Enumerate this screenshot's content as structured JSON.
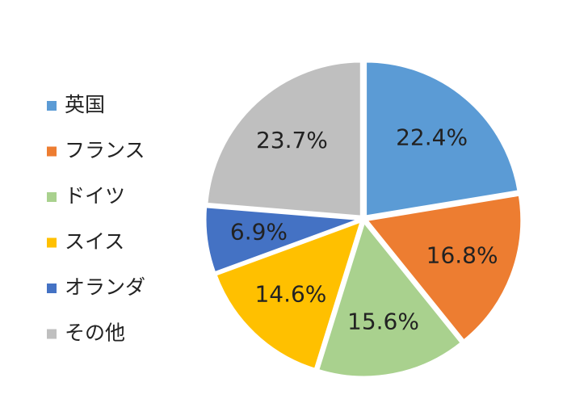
{
  "chart_data": {
    "type": "pie",
    "categories": [
      "英国",
      "フランス",
      "ドイツ",
      "スイス",
      "オランダ",
      "その他"
    ],
    "values": [
      22.4,
      16.8,
      15.6,
      14.6,
      6.9,
      23.7
    ],
    "value_labels": [
      "22.4%",
      "16.8%",
      "15.6%",
      "14.6%",
      "6.9%",
      "23.7%"
    ],
    "colors": [
      "#5b9bd5",
      "#ed7d31",
      "#a9d18e",
      "#ffc000",
      "#4472c4",
      "#bfbfbf"
    ],
    "legend": "left"
  }
}
